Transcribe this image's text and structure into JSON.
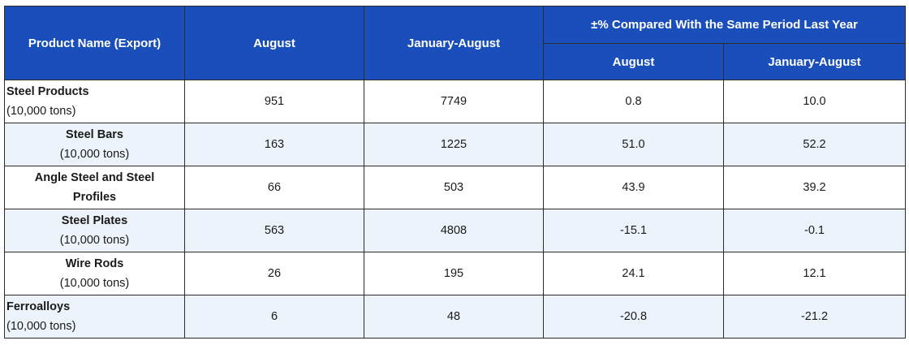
{
  "headers": {
    "product": "Product Name (Export)",
    "august": "August",
    "jan_aug": "January-August",
    "compared_group": "±% Compared With the Same Period Last Year",
    "cmp_august": "August",
    "cmp_jan_aug": "January-August"
  },
  "rows": [
    {
      "name": "Steel Products",
      "unit": "(10,000 tons)",
      "august": "951",
      "jan_aug": "7749",
      "cmp_august": "0.8",
      "cmp_jan_aug": "10.0"
    },
    {
      "name": "Steel Bars",
      "unit": "(10,000 tons)",
      "august": "163",
      "jan_aug": "1225",
      "cmp_august": "51.0",
      "cmp_jan_aug": "52.2"
    },
    {
      "name": "Angle Steel and Steel Profiles",
      "unit": "",
      "august": "66",
      "jan_aug": "503",
      "cmp_august": "43.9",
      "cmp_jan_aug": "39.2"
    },
    {
      "name": "Steel Plates",
      "unit": "(10,000 tons)",
      "august": "563",
      "jan_aug": "4808",
      "cmp_august": "-15.1",
      "cmp_jan_aug": "-0.1"
    },
    {
      "name": "Wire Rods",
      "unit": "(10,000 tons)",
      "august": "26",
      "jan_aug": "195",
      "cmp_august": "24.1",
      "cmp_jan_aug": "12.1"
    },
    {
      "name": "Ferroalloys",
      "unit": "(10,000 tons)",
      "august": "6",
      "jan_aug": "48",
      "cmp_august": "-20.8",
      "cmp_jan_aug": "-21.2"
    }
  ]
}
